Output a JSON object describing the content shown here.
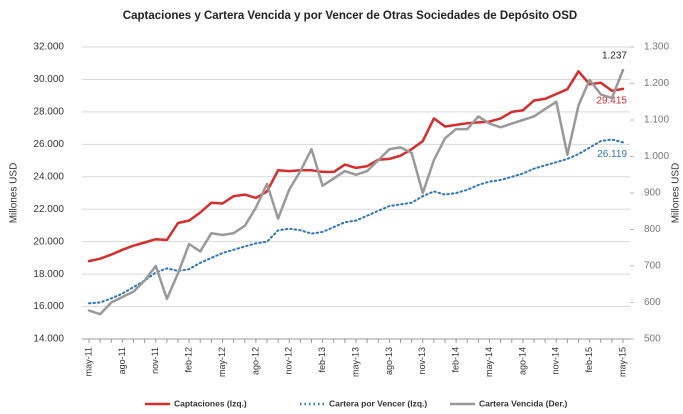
{
  "chart_data": {
    "type": "line",
    "title": "Captaciones y Cartera Vencida y por Vencer de Otras Sociedades de Depósito OSD",
    "ylabel": "Millones USD",
    "y2label": "Millones USD",
    "categories": [
      "may-11",
      null,
      null,
      "ago-11",
      null,
      null,
      "nov-11",
      null,
      null,
      "feb-12",
      null,
      null,
      "may-12",
      null,
      null,
      "ago-12",
      null,
      null,
      "nov-12",
      null,
      null,
      "feb-13",
      null,
      null,
      "may-13",
      null,
      null,
      "ago-13",
      null,
      null,
      "nov-13",
      null,
      null,
      "feb-14",
      null,
      null,
      "may-14",
      null,
      null,
      "ago-14",
      null,
      null,
      "nov-14",
      null,
      null,
      "feb-15",
      null,
      null,
      "may-15"
    ],
    "series": [
      {
        "name": "Captaciones (Izq.)",
        "color": "#d62d2d",
        "style": "solid",
        "axis": "y",
        "values": [
          18800,
          18950,
          19200,
          19500,
          19750,
          19950,
          20150,
          20100,
          21150,
          21300,
          21800,
          22400,
          22350,
          22800,
          22900,
          22700,
          23100,
          24400,
          24350,
          24400,
          24400,
          24300,
          24300,
          24750,
          24550,
          24650,
          25050,
          25100,
          25300,
          25700,
          26200,
          27600,
          27100,
          27200,
          27300,
          27350,
          27400,
          27600,
          28000,
          28100,
          28700,
          28800,
          29100,
          29400,
          30500,
          29700,
          29800,
          29300,
          29415
        ],
        "value_labels": [
          null,
          null,
          null,
          null,
          null,
          null,
          null,
          null,
          null,
          null,
          null,
          null,
          null,
          null,
          null,
          null,
          null,
          null,
          null,
          null,
          null,
          null,
          null,
          null,
          null,
          null,
          null,
          null,
          null,
          null,
          null,
          null,
          null,
          null,
          null,
          null,
          null,
          null,
          null,
          null,
          null,
          null,
          null,
          null,
          null,
          null,
          null,
          null,
          "29.415"
        ]
      },
      {
        "name": "Cartera por Vencer (Izq.)",
        "color": "#2e75b6",
        "style": "dotted",
        "axis": "y",
        "values": [
          16200,
          16250,
          16500,
          16800,
          17200,
          17600,
          18100,
          18350,
          18200,
          18300,
          18700,
          19000,
          19300,
          19500,
          19700,
          19900,
          20000,
          20700,
          20800,
          20700,
          20500,
          20600,
          20900,
          21200,
          21300,
          21600,
          21900,
          22200,
          22300,
          22400,
          22800,
          23100,
          22900,
          23000,
          23200,
          23500,
          23700,
          23800,
          24000,
          24200,
          24500,
          24700,
          24900,
          25100,
          25400,
          25800,
          26200,
          26300,
          26119
        ],
        "value_labels": [
          null,
          null,
          null,
          null,
          null,
          null,
          null,
          null,
          null,
          null,
          null,
          null,
          null,
          null,
          null,
          null,
          null,
          null,
          null,
          null,
          null,
          null,
          null,
          null,
          null,
          null,
          null,
          null,
          null,
          null,
          null,
          null,
          null,
          null,
          null,
          null,
          null,
          null,
          null,
          null,
          null,
          null,
          null,
          null,
          null,
          null,
          null,
          null,
          "26.119"
        ]
      },
      {
        "name": "Cartera Vencida (Der.)",
        "color": "#999999",
        "style": "solid",
        "axis": "y2",
        "values": [
          578,
          568,
          600,
          615,
          630,
          660,
          700,
          610,
          680,
          760,
          740,
          790,
          785,
          790,
          810,
          860,
          925,
          830,
          910,
          960,
          1020,
          920,
          940,
          960,
          950,
          960,
          990,
          1020,
          1025,
          1010,
          900,
          990,
          1050,
          1075,
          1075,
          1110,
          1090,
          1080,
          1090,
          1100,
          1110,
          1130,
          1150,
          1005,
          1140,
          1210,
          1170,
          1160,
          1237
        ],
        "value_labels": [
          null,
          null,
          null,
          null,
          null,
          null,
          null,
          null,
          null,
          null,
          null,
          null,
          null,
          null,
          null,
          null,
          null,
          null,
          null,
          null,
          null,
          null,
          null,
          null,
          null,
          null,
          null,
          null,
          null,
          null,
          null,
          null,
          null,
          null,
          null,
          null,
          null,
          null,
          null,
          null,
          null,
          null,
          null,
          null,
          null,
          null,
          null,
          null,
          "1.237"
        ]
      }
    ],
    "ylim": [
      14000,
      32000
    ],
    "yticks": [
      {
        "value": 14000,
        "label": "14.000"
      },
      {
        "value": 16000,
        "label": "16.000"
      },
      {
        "value": 18000,
        "label": "18.000"
      },
      {
        "value": 20000,
        "label": "20.000"
      },
      {
        "value": 22000,
        "label": "22.000"
      },
      {
        "value": 24000,
        "label": "24.000"
      },
      {
        "value": 26000,
        "label": "26.000"
      },
      {
        "value": 28000,
        "label": "28.000"
      },
      {
        "value": 30000,
        "label": "30.000"
      },
      {
        "value": 32000,
        "label": "32.000"
      }
    ],
    "y2lim": [
      500,
      1300
    ],
    "y2ticks": [
      500,
      600,
      700,
      800,
      900,
      {
        "value": 1000,
        "label": "1.000"
      },
      {
        "value": 1100,
        "label": "1.100"
      },
      {
        "value": 1200,
        "label": "1.200"
      },
      {
        "value": 1300,
        "label": "1.300"
      }
    ],
    "grid": true,
    "legend": "bottom"
  }
}
